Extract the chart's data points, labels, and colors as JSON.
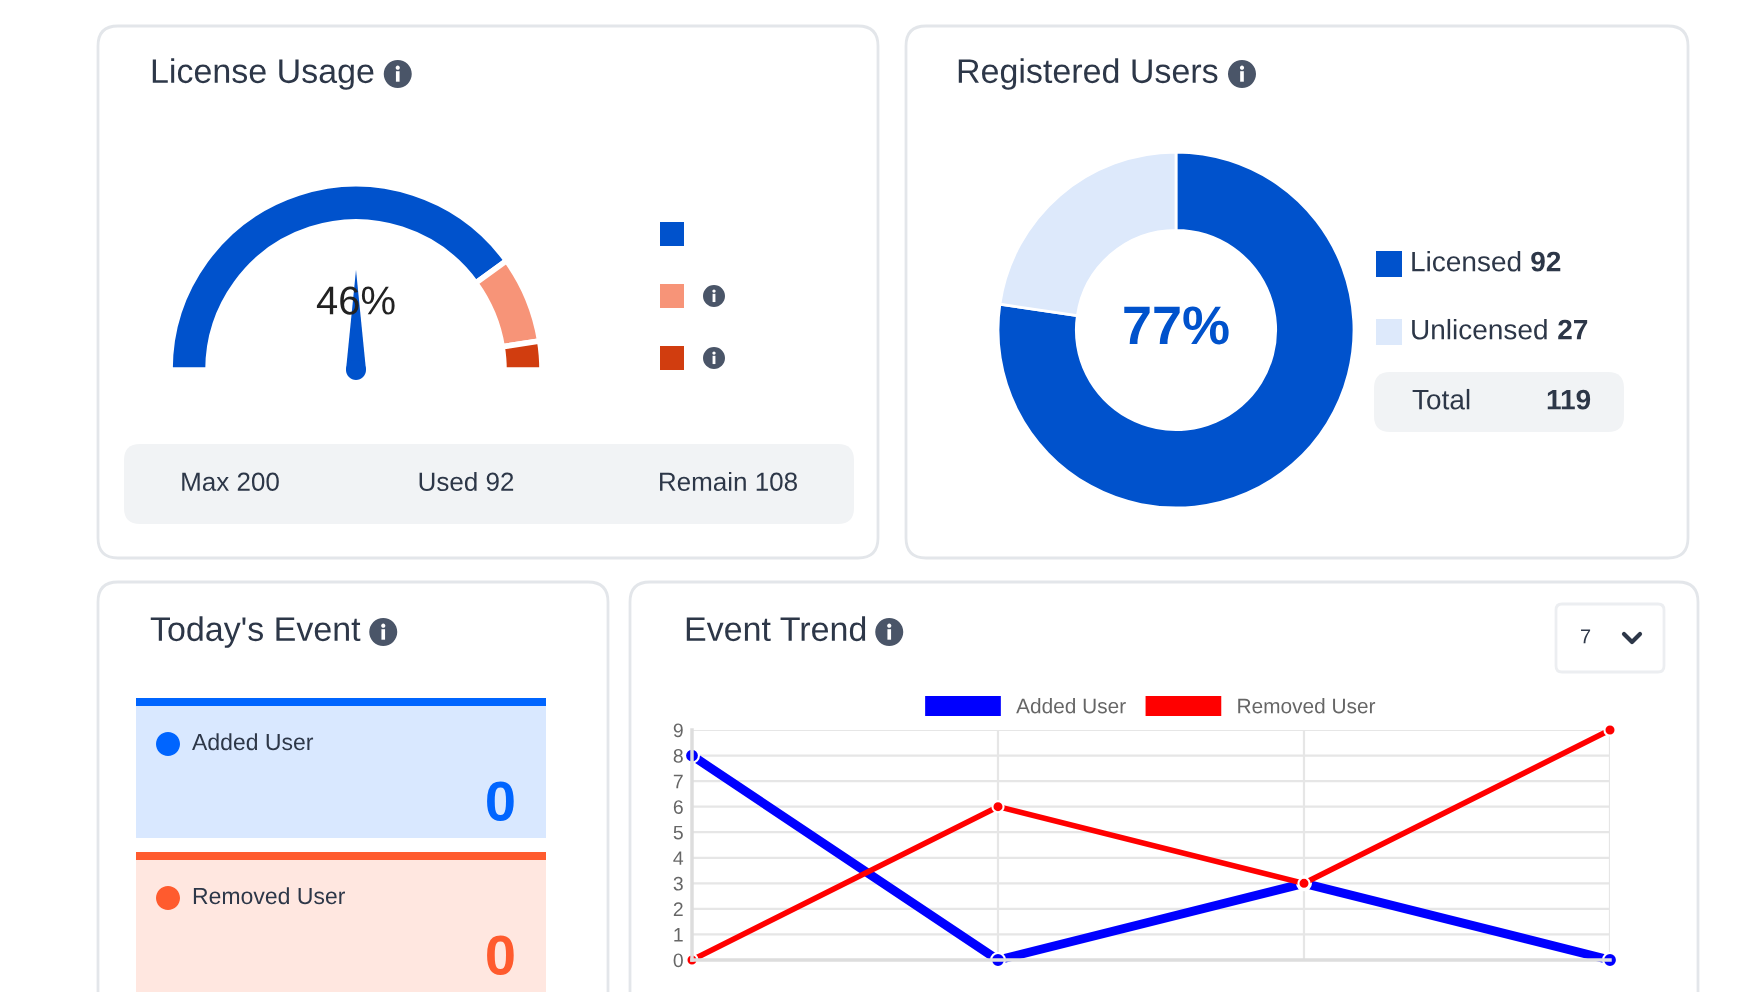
{
  "chart_data": [
    {
      "type": "donut",
      "title": "License Usage",
      "categories": [
        null,
        null,
        null
      ],
      "values": [
        80,
        15,
        5
      ],
      "colors": [
        "#0052cc",
        "#f79478",
        "#d13d0f"
      ],
      "annotations": [
        "46%",
        "Max 200",
        "Used 92",
        "Remain 108"
      ]
    },
    {
      "type": "donut",
      "title": "Registered Users",
      "categories": [
        "Licensed",
        "Unlicensed"
      ],
      "values": [
        92,
        27
      ],
      "value_labels": [
        "92",
        "27"
      ],
      "colors": [
        "#0052cc",
        "#dde9fb"
      ],
      "legend": "right",
      "annotations": [
        "77%",
        "Total",
        "119"
      ]
    },
    {
      "type": "other",
      "title": "Today's Event",
      "categories": [
        "Added User",
        "Removed User"
      ],
      "values": [
        0,
        0
      ],
      "value_labels": [
        "0",
        "0"
      ],
      "colors": [
        "#0065ff",
        "#ff5b2e"
      ]
    },
    {
      "type": "line",
      "title": "Event Trend",
      "categories": [
        null,
        null,
        null,
        null
      ],
      "series": [
        {
          "name": "Added User",
          "color": "#0000ff",
          "values": [
            8,
            0,
            3,
            0
          ]
        },
        {
          "name": "Removed User",
          "color": "#ff0000",
          "values": [
            0,
            6,
            3,
            9
          ]
        }
      ],
      "ylim": [
        0,
        9
      ],
      "yticks": [
        0,
        1,
        2,
        3,
        4,
        5,
        6,
        7,
        8,
        9
      ],
      "grid": true,
      "legend": "top",
      "marker": "circle",
      "line_style": "solid",
      "annotations": [
        "7"
      ]
    }
  ]
}
